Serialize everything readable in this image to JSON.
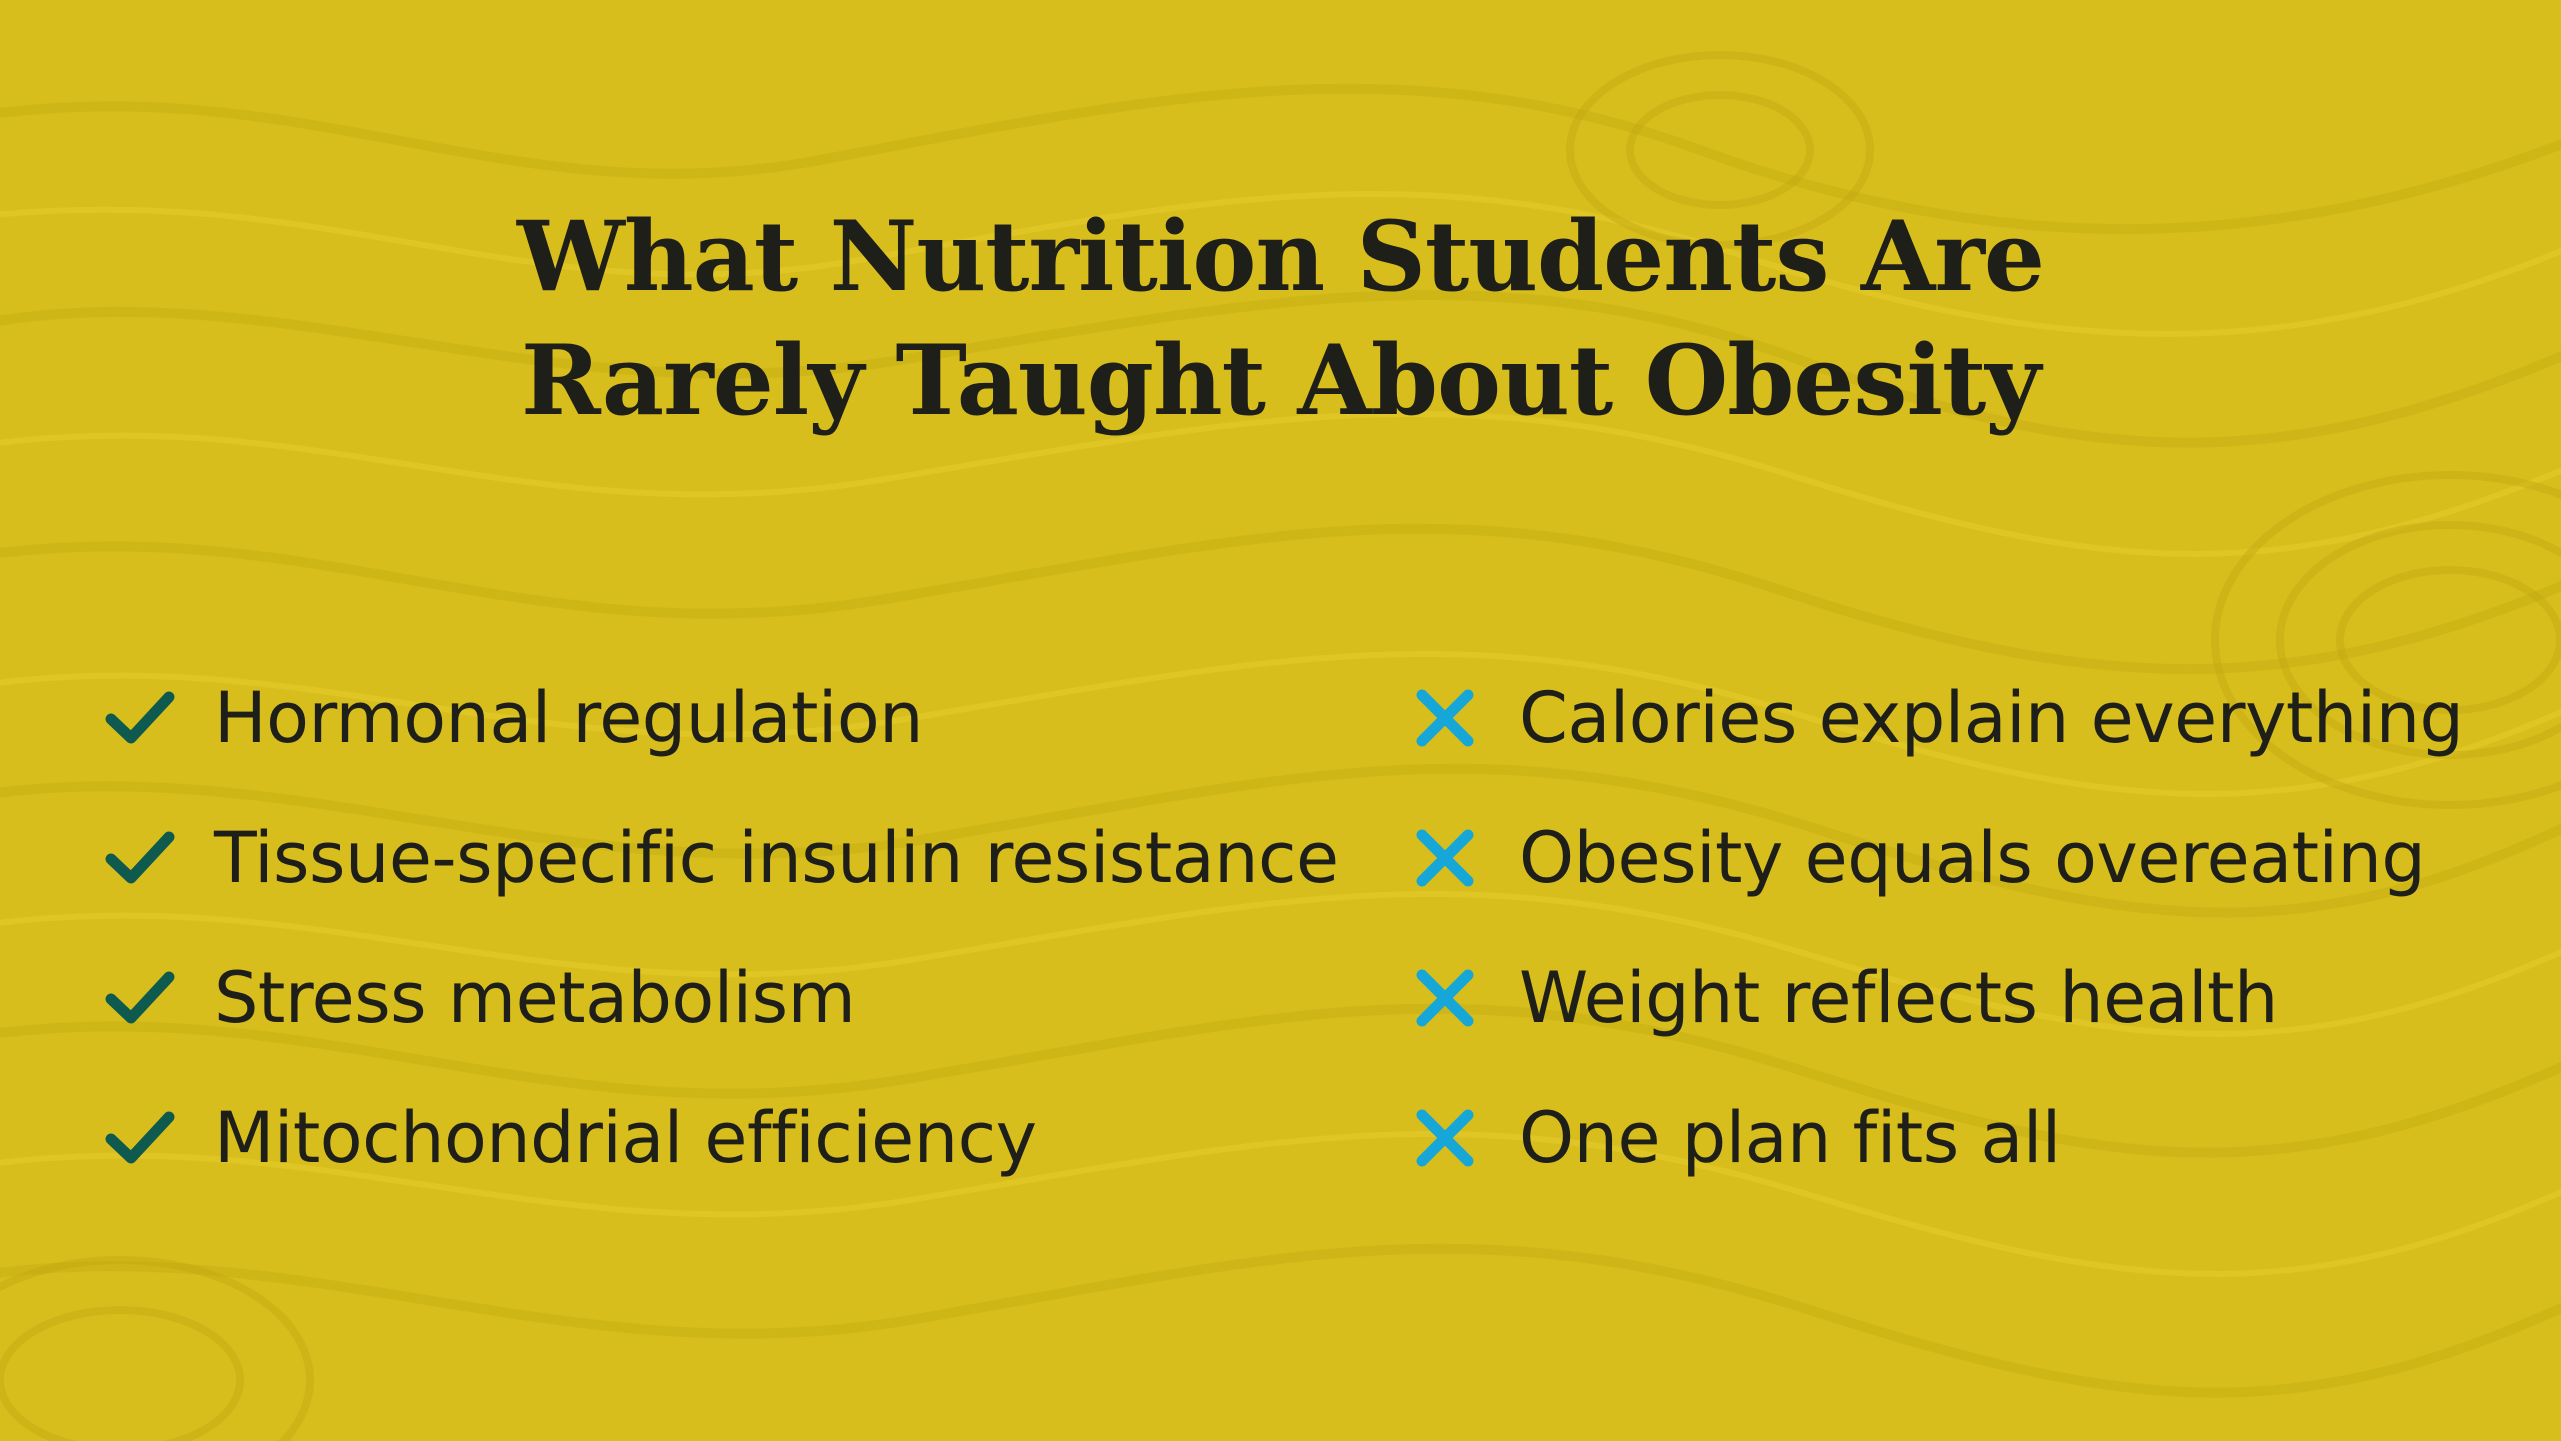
{
  "colors": {
    "background": "#d8be1c",
    "text": "#1f1f1a",
    "check": "#0e5a4f",
    "cross": "#16a7d8"
  },
  "title": {
    "line1": "What Nutrition Students Are",
    "line2": "Rarely Taught About Obesity"
  },
  "left_list": {
    "icon": "checkmark-icon",
    "items": [
      "Hormonal regulation",
      "Tissue-specific insulin resistance",
      "Stress metabolism",
      "Mitochondrial efficiency"
    ]
  },
  "right_list": {
    "icon": "cross-icon",
    "items": [
      "Calories explain everything",
      "Obesity equals overeating",
      "Weight reflects health",
      "One plan fits all"
    ]
  }
}
